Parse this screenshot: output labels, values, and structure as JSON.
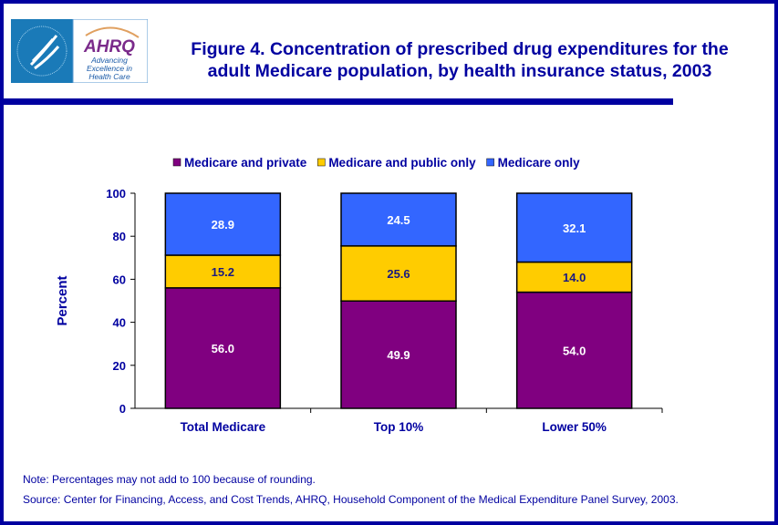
{
  "header": {
    "logo_text": [
      "DEPARTMENT OF HEALTH & HUMAN SERVICES USA",
      "AHRQ",
      "Advancing",
      "Excellence in",
      "Health Care"
    ],
    "title_line1": "Figure 4. Concentration of prescribed drug expenditures for the",
    "title_line2": "adult Medicare population, by health insurance status, 2003"
  },
  "chart_data": {
    "type": "bar",
    "stacked": true,
    "title": "Figure 4. Concentration of prescribed drug expenditures for the adult Medicare population, by health insurance status, 2003",
    "xlabel": "",
    "ylabel": "Percent",
    "ylim": [
      0,
      100
    ],
    "yticks": [
      0,
      20,
      40,
      60,
      80,
      100
    ],
    "grid": false,
    "legend_placement": "top",
    "categories": [
      "Total Medicare",
      "Top 10%",
      "Lower 50%"
    ],
    "series": [
      {
        "name": "Medicare and private",
        "values": [
          56.0,
          49.9,
          54.0
        ],
        "labels": [
          "56.0",
          "49.9",
          "54.0"
        ],
        "color": "#800080",
        "label_color": "#ffffff"
      },
      {
        "name": "Medicare and public only",
        "values": [
          15.2,
          25.6,
          14.0
        ],
        "labels": [
          "15.2",
          "25.6",
          "14.0"
        ],
        "color": "#ffcc00",
        "label_color": "#1a1a80"
      },
      {
        "name": "Medicare only",
        "values": [
          28.9,
          24.5,
          32.1
        ],
        "labels": [
          "28.9",
          "24.5",
          "32.1"
        ],
        "color": "#3366ff",
        "label_color": "#ffffff"
      }
    ]
  },
  "footer": {
    "note": "Note: Percentages may not add to 100 because of rounding.",
    "source": "Source: Center for Financing, Access, and Cost Trends, AHRQ, Household Component of the Medical Expenditure Panel Survey, 2003."
  }
}
